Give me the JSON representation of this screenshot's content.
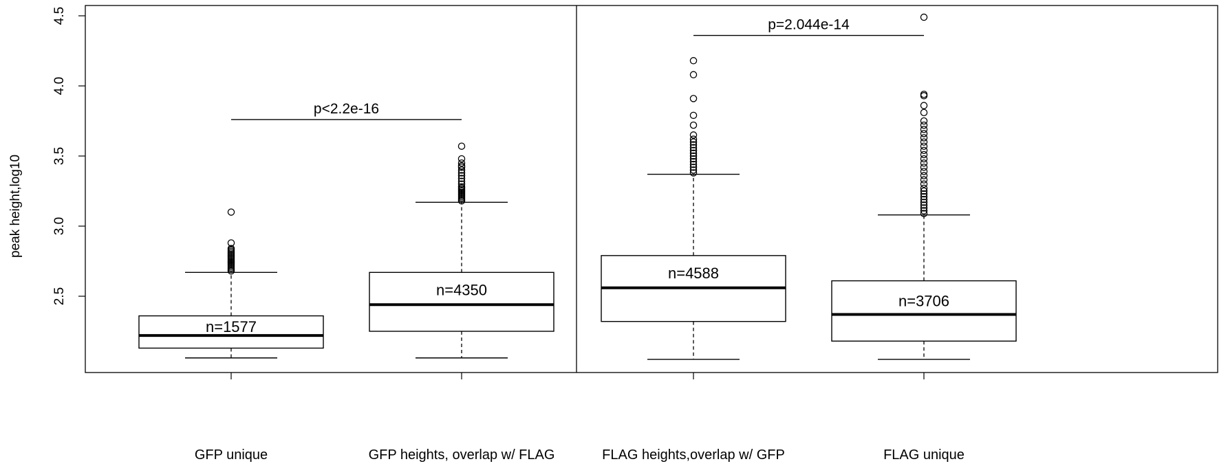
{
  "chart_data": {
    "type": "boxplot",
    "ylabel": "peak height,log10",
    "ylim": [
      2.0,
      4.55
    ],
    "yticks": [
      "2.5",
      "3.0",
      "3.5",
      "4.0",
      "4.5"
    ],
    "panels": [
      {
        "groups": [
          {
            "label": "GFP unique",
            "n_label": "n=1577",
            "whisker_low": 2.06,
            "q1": 2.13,
            "median": 2.22,
            "q3": 2.36,
            "whisker_high": 2.67,
            "outliers": [
              2.68,
              2.69,
              2.7,
              2.71,
              2.72,
              2.73,
              2.74,
              2.75,
              2.76,
              2.77,
              2.78,
              2.79,
              2.8,
              2.81,
              2.82,
              2.83,
              2.84,
              2.88,
              3.1
            ]
          },
          {
            "label": "GFP heights, overlap w/ FLAG",
            "n_label": "n=4350",
            "whisker_low": 2.06,
            "q1": 2.25,
            "median": 2.44,
            "q3": 2.67,
            "whisker_high": 3.17,
            "outliers": [
              3.18,
              3.19,
              3.2,
              3.21,
              3.22,
              3.23,
              3.24,
              3.25,
              3.26,
              3.27,
              3.28,
              3.3,
              3.32,
              3.34,
              3.36,
              3.38,
              3.4,
              3.42,
              3.43,
              3.45,
              3.48,
              3.57
            ]
          }
        ],
        "comparison": {
          "label": "p<2.2e-16",
          "y": 3.76
        }
      },
      {
        "groups": [
          {
            "label": "FLAG heights,overlap w/ GFP",
            "n_label": "n=4588",
            "whisker_low": 2.05,
            "q1": 2.32,
            "median": 2.56,
            "q3": 2.79,
            "whisker_high": 3.37,
            "outliers": [
              3.38,
              3.4,
              3.42,
              3.44,
              3.46,
              3.48,
              3.5,
              3.52,
              3.54,
              3.56,
              3.58,
              3.6,
              3.62,
              3.65,
              3.72,
              3.79,
              3.91,
              4.08,
              4.18
            ]
          },
          {
            "label": "FLAG unique",
            "n_label": "n=3706",
            "whisker_low": 2.05,
            "q1": 2.18,
            "median": 2.37,
            "q3": 2.61,
            "whisker_high": 3.08,
            "outliers": [
              3.09,
              3.11,
              3.13,
              3.15,
              3.17,
              3.19,
              3.21,
              3.23,
              3.25,
              3.27,
              3.3,
              3.33,
              3.36,
              3.39,
              3.42,
              3.45,
              3.48,
              3.51,
              3.54,
              3.57,
              3.6,
              3.63,
              3.66,
              3.69,
              3.72,
              3.75,
              3.81,
              3.86,
              3.93,
              3.94,
              4.49
            ]
          }
        ],
        "comparison": {
          "label": "p=2.044e-14",
          "y": 4.36
        }
      }
    ],
    "grid": false,
    "legend": "none"
  }
}
